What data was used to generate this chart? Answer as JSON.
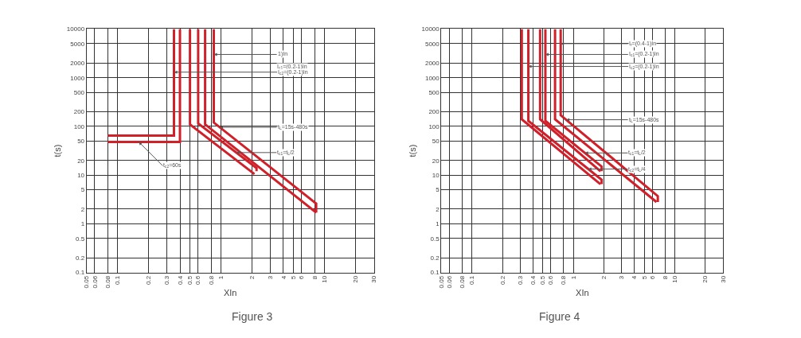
{
  "chart_data": [
    {
      "type": "line",
      "title": "Figure 3",
      "xlabel": "XIn",
      "ylabel": "t(s)",
      "log": "xy",
      "grid": true,
      "xlim": [
        0.05,
        30
      ],
      "ylim": [
        0.1,
        10000
      ],
      "xticks": [
        0.05,
        0.06,
        0.08,
        0.1,
        0.2,
        0.3,
        0.4,
        0.5,
        0.6,
        0.8,
        1,
        2,
        3,
        4,
        5,
        6,
        8,
        10,
        20,
        30
      ],
      "yticks": [
        0.1,
        0.2,
        0.5,
        1,
        2,
        5,
        10,
        20,
        50,
        100,
        200,
        500,
        1000,
        2000,
        5000,
        10000
      ],
      "series": [
        {
          "color": "#d0202a",
          "x": [
            0.08,
            0.35,
            0.35
          ],
          "values": [
            65,
            65,
            10000
          ]
        },
        {
          "color": "#d0202a",
          "x": [
            0.08,
            0.4,
            0.4
          ],
          "values": [
            48,
            48,
            10000
          ]
        },
        {
          "color": "#d0202a",
          "x": [
            0.5,
            0.5,
            2.1
          ],
          "values": [
            10000,
            110,
            10.5
          ]
        },
        {
          "color": "#d0202a",
          "x": [
            0.6,
            0.6,
            2.2,
            2.2
          ],
          "values": [
            10000,
            115,
            14,
            12
          ]
        },
        {
          "color": "#d0202a",
          "x": [
            0.7,
            0.7,
            8.3
          ],
          "values": [
            10000,
            110,
            1.7
          ]
        },
        {
          "color": "#d0202a",
          "x": [
            0.85,
            0.85,
            8.3,
            8.3
          ],
          "values": [
            10000,
            120,
            2.6,
            1.7
          ]
        }
      ],
      "annotations": [
        {
          "text": "1)In",
          "x": 0.85,
          "y": 3000
        },
        "I$_{c1}$=(0.2-1)In",
        {
          "text": "I$_{c2}$=(0.2-1)In",
          "x": 0.35,
          "y": 1300
        },
        {
          "text": "t$_{L}$=15s-480s",
          "x": 0.97,
          "y": 96
        },
        {
          "text": "t$_{c1}$=t$_{L}$/2",
          "x": 1.4,
          "y": 29
        },
        {
          "text": "t$_{c2}$=60s",
          "x": 0.16,
          "y": 48
        }
      ]
    },
    {
      "type": "line",
      "title": "Figure 4",
      "xlabel": "XIn",
      "ylabel": "t(s)",
      "log": "xy",
      "grid": true,
      "xlim": [
        0.05,
        30
      ],
      "ylim": [
        0.1,
        10000
      ],
      "xticks": [
        0.05,
        0.06,
        0.08,
        0.1,
        0.2,
        0.3,
        0.4,
        0.5,
        0.6,
        0.8,
        1,
        2,
        3,
        4,
        5,
        6,
        8,
        10,
        20,
        30
      ],
      "yticks": [
        0.1,
        0.2,
        0.5,
        1,
        2,
        5,
        10,
        20,
        50,
        100,
        200,
        500,
        1000,
        2000,
        5000,
        10000
      ],
      "series": [
        {
          "color": "#d0202a",
          "x": [
            0.31,
            0.31,
            1.85
          ],
          "values": [
            10000,
            140,
            6.5
          ]
        },
        {
          "color": "#d0202a",
          "x": [
            0.36,
            0.36,
            1.9,
            1.9
          ],
          "values": [
            10000,
            130,
            8,
            6.5
          ]
        },
        {
          "color": "#d0202a",
          "x": [
            0.47,
            0.47,
            1.85
          ],
          "values": [
            10000,
            140,
            12
          ]
        },
        {
          "color": "#d0202a",
          "x": [
            0.53,
            0.53,
            1.9,
            1.9
          ],
          "values": [
            10000,
            130,
            15,
            12
          ]
        },
        {
          "color": "#d0202a",
          "x": [
            0.66,
            0.66,
            6.6
          ],
          "values": [
            10000,
            140,
            2.8
          ]
        },
        {
          "color": "#d0202a",
          "x": [
            0.75,
            0.75,
            6.8,
            6.8
          ],
          "values": [
            10000,
            170,
            3.7,
            2.8
          ]
        }
      ],
      "annotations": [
        {
          "text": "I$_{r}$=(0.4-1)In",
          "x": 0.75,
          "y": 5000
        },
        {
          "text": "I$_{c1}$=(0.2-1)In",
          "x": 0.53,
          "y": 3000
        },
        {
          "text": "I$_{c2}$=(0.2-1)In",
          "x": 0.36,
          "y": 1700
        },
        {
          "text": "t$_{L}$=15s-480s",
          "x": 0.85,
          "y": 137
        },
        {
          "text": "t$_{c1}$=t$_{L}$/2",
          "x": 1.3,
          "y": 28.5
        },
        {
          "text": "t$_{c2}$=t$_{L}$/4",
          "x": 1.4,
          "y": 13.3
        }
      ]
    }
  ]
}
